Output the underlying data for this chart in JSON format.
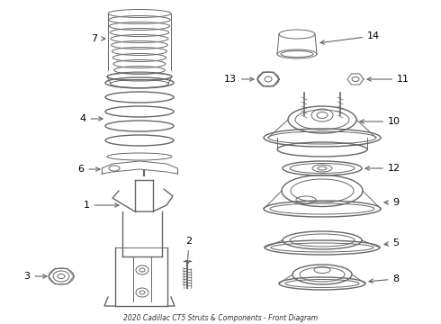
{
  "title": "2020 Cadillac CT5 Struts & Components - Front Diagram",
  "bg_color": "#ffffff",
  "line_color": "#666666",
  "label_color": "#000000",
  "fig_w": 4.9,
  "fig_h": 3.6,
  "dpi": 100
}
